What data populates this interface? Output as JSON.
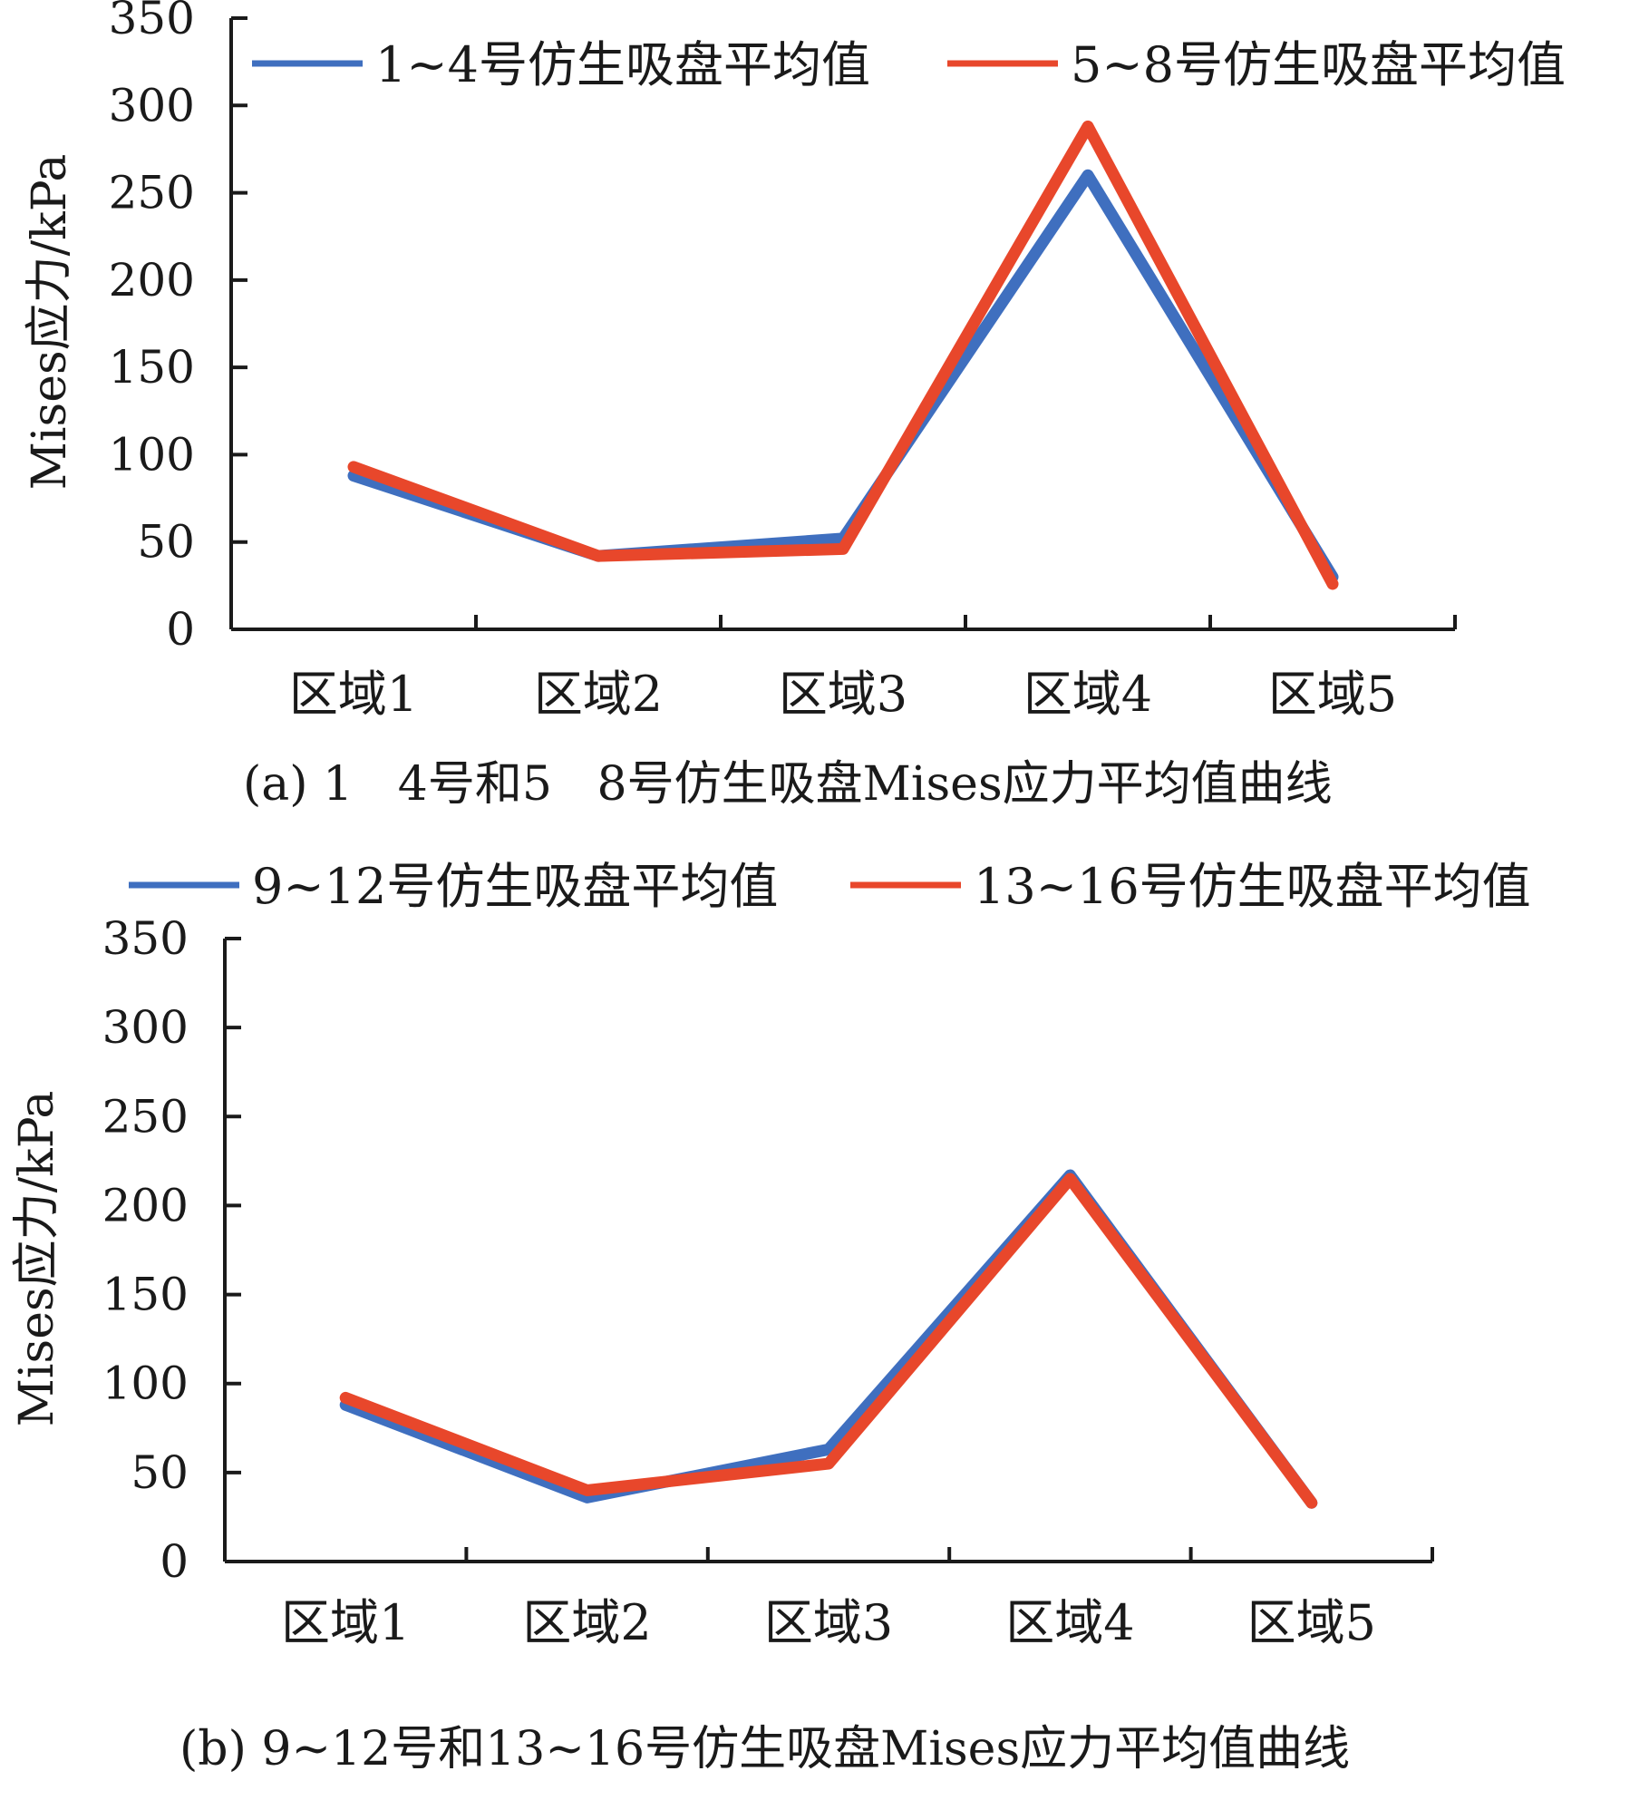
{
  "chart_data": [
    {
      "type": "line",
      "panel": "a",
      "categories": [
        "区域1",
        "区域2",
        "区域3",
        "区域4",
        "区域5"
      ],
      "series": [
        {
          "name": "1~4号仿生吸盘平均值",
          "color": "#3f6fbf",
          "values": [
            88,
            42,
            52,
            260,
            30
          ]
        },
        {
          "name": "5~8号仿生吸盘平均值",
          "color": "#e8472b",
          "values": [
            93,
            42,
            46,
            288,
            26
          ]
        }
      ],
      "ylabel": "Mises应力/kPa",
      "yticks": [
        "0",
        "50",
        "100",
        "150",
        "200",
        "250",
        "300",
        "350"
      ],
      "ylim": [
        0,
        350
      ],
      "caption": "(a) 1   4号和5   8号仿生吸盘Mises应力平均值曲线",
      "legend_position": "top",
      "grid": false
    },
    {
      "type": "line",
      "panel": "b",
      "categories": [
        "区域1",
        "区域2",
        "区域3",
        "区域4",
        "区域5"
      ],
      "series": [
        {
          "name": "9~12号仿生吸盘平均值",
          "color": "#3f6fbf",
          "values": [
            88,
            36,
            63,
            217,
            33
          ]
        },
        {
          "name": "13~16号仿生吸盘平均值",
          "color": "#e8472b",
          "values": [
            92,
            40,
            55,
            215,
            33
          ]
        }
      ],
      "ylabel": "Mises应力/kPa",
      "yticks": [
        "0",
        "50",
        "100",
        "150",
        "200",
        "250",
        "300",
        "350"
      ],
      "ylim": [
        0,
        350
      ],
      "caption": "(b) 9~12号和13~16号仿生吸盘Mises应力平均值曲线",
      "legend_position": "top",
      "grid": false
    }
  ]
}
